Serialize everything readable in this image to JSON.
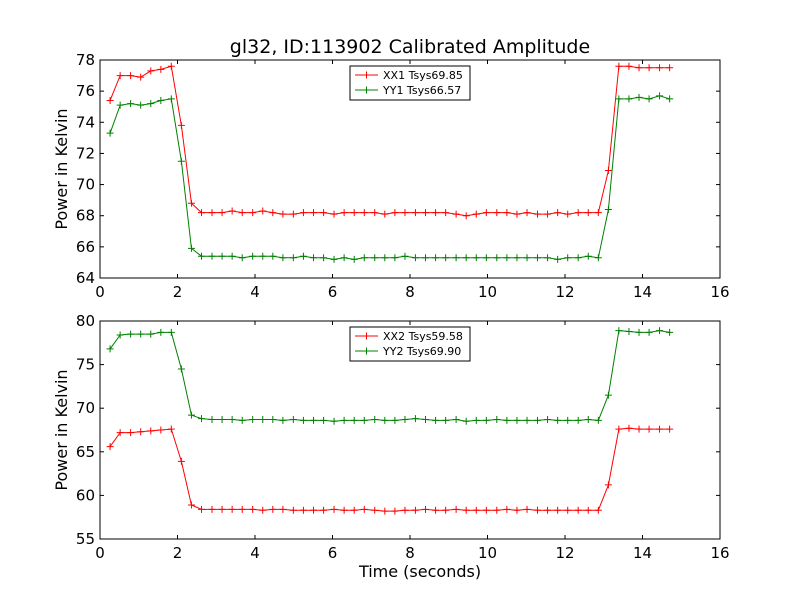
{
  "figure": {
    "title": "gl32, ID:113902 Calibrated Amplitude"
  },
  "chart_data": [
    {
      "type": "line",
      "title": "gl32, ID:113902 Calibrated Amplitude",
      "xlabel": "",
      "ylabel": "Power in Kelvin",
      "xlim": [
        0,
        16
      ],
      "ylim": [
        64,
        78
      ],
      "xticks": [
        0,
        2,
        4,
        6,
        8,
        10,
        12,
        14,
        16
      ],
      "yticks": [
        64,
        66,
        68,
        70,
        72,
        74,
        76,
        78
      ],
      "grid": false,
      "legend_position": "top-center",
      "x": [
        0.26,
        0.52,
        0.79,
        1.05,
        1.31,
        1.57,
        1.84,
        2.1,
        2.36,
        2.62,
        2.89,
        3.15,
        3.41,
        3.67,
        3.94,
        4.2,
        4.46,
        4.72,
        4.99,
        5.25,
        5.51,
        5.77,
        6.04,
        6.3,
        6.56,
        6.82,
        7.09,
        7.35,
        7.61,
        7.87,
        8.14,
        8.4,
        8.66,
        8.92,
        9.19,
        9.45,
        9.71,
        9.97,
        10.24,
        10.5,
        10.76,
        11.02,
        11.29,
        11.55,
        11.81,
        12.07,
        12.34,
        12.6,
        12.86,
        13.12,
        13.39,
        13.65,
        13.91,
        14.17,
        14.44,
        14.7
      ],
      "series": [
        {
          "name": "XX1 Tsys69.85",
          "color": "#ff0000",
          "values": [
            75.4,
            77.0,
            77.0,
            76.9,
            77.3,
            77.4,
            77.6,
            73.8,
            68.8,
            68.2,
            68.2,
            68.2,
            68.3,
            68.2,
            68.2,
            68.3,
            68.2,
            68.1,
            68.1,
            68.2,
            68.2,
            68.2,
            68.1,
            68.2,
            68.2,
            68.2,
            68.2,
            68.1,
            68.2,
            68.2,
            68.2,
            68.2,
            68.2,
            68.2,
            68.1,
            68.0,
            68.1,
            68.2,
            68.2,
            68.2,
            68.1,
            68.2,
            68.1,
            68.1,
            68.2,
            68.1,
            68.2,
            68.2,
            68.2,
            70.9,
            77.6,
            77.6,
            77.5,
            77.5,
            77.5,
            77.5
          ]
        },
        {
          "name": "YY1 Tsys66.57",
          "color": "#008000",
          "values": [
            73.3,
            75.1,
            75.2,
            75.1,
            75.2,
            75.4,
            75.5,
            71.5,
            65.9,
            65.4,
            65.4,
            65.4,
            65.4,
            65.3,
            65.4,
            65.4,
            65.4,
            65.3,
            65.3,
            65.4,
            65.3,
            65.3,
            65.2,
            65.3,
            65.2,
            65.3,
            65.3,
            65.3,
            65.3,
            65.4,
            65.3,
            65.3,
            65.3,
            65.3,
            65.3,
            65.3,
            65.3,
            65.3,
            65.3,
            65.3,
            65.3,
            65.3,
            65.3,
            65.3,
            65.2,
            65.3,
            65.3,
            65.4,
            65.3,
            68.4,
            75.5,
            75.5,
            75.6,
            75.5,
            75.7,
            75.5
          ]
        }
      ]
    },
    {
      "type": "line",
      "title": "",
      "xlabel": "Time (seconds)",
      "ylabel": "Power in Kelvin",
      "xlim": [
        0,
        16
      ],
      "ylim": [
        55,
        80
      ],
      "xticks": [
        0,
        2,
        4,
        6,
        8,
        10,
        12,
        14,
        16
      ],
      "yticks": [
        55,
        60,
        65,
        70,
        75,
        80
      ],
      "grid": false,
      "legend_position": "top-center",
      "x": [
        0.26,
        0.52,
        0.79,
        1.05,
        1.31,
        1.57,
        1.84,
        2.1,
        2.36,
        2.62,
        2.89,
        3.15,
        3.41,
        3.67,
        3.94,
        4.2,
        4.46,
        4.72,
        4.99,
        5.25,
        5.51,
        5.77,
        6.04,
        6.3,
        6.56,
        6.82,
        7.09,
        7.35,
        7.61,
        7.87,
        8.14,
        8.4,
        8.66,
        8.92,
        9.19,
        9.45,
        9.71,
        9.97,
        10.24,
        10.5,
        10.76,
        11.02,
        11.29,
        11.55,
        11.81,
        12.07,
        12.34,
        12.6,
        12.86,
        13.12,
        13.39,
        13.65,
        13.91,
        14.17,
        14.44,
        14.7
      ],
      "series": [
        {
          "name": "XX2 Tsys59.58",
          "color": "#ff0000",
          "values": [
            65.6,
            67.2,
            67.2,
            67.3,
            67.4,
            67.5,
            67.6,
            63.9,
            58.9,
            58.4,
            58.4,
            58.4,
            58.4,
            58.4,
            58.4,
            58.3,
            58.4,
            58.4,
            58.3,
            58.3,
            58.3,
            58.3,
            58.4,
            58.3,
            58.3,
            58.4,
            58.3,
            58.2,
            58.2,
            58.3,
            58.3,
            58.4,
            58.3,
            58.3,
            58.4,
            58.3,
            58.3,
            58.3,
            58.3,
            58.4,
            58.3,
            58.4,
            58.3,
            58.3,
            58.3,
            58.3,
            58.3,
            58.3,
            58.3,
            61.2,
            67.6,
            67.7,
            67.6,
            67.6,
            67.6,
            67.6
          ]
        },
        {
          "name": "YY2 Tsys69.90",
          "color": "#008000",
          "values": [
            76.8,
            78.4,
            78.5,
            78.5,
            78.5,
            78.7,
            78.7,
            74.5,
            69.2,
            68.8,
            68.7,
            68.7,
            68.7,
            68.6,
            68.7,
            68.7,
            68.7,
            68.6,
            68.7,
            68.6,
            68.6,
            68.6,
            68.5,
            68.6,
            68.6,
            68.6,
            68.7,
            68.6,
            68.6,
            68.7,
            68.8,
            68.7,
            68.6,
            68.6,
            68.7,
            68.5,
            68.6,
            68.6,
            68.7,
            68.6,
            68.6,
            68.6,
            68.6,
            68.7,
            68.6,
            68.6,
            68.6,
            68.7,
            68.6,
            71.5,
            78.9,
            78.8,
            78.7,
            78.7,
            78.9,
            78.7
          ]
        }
      ]
    }
  ]
}
